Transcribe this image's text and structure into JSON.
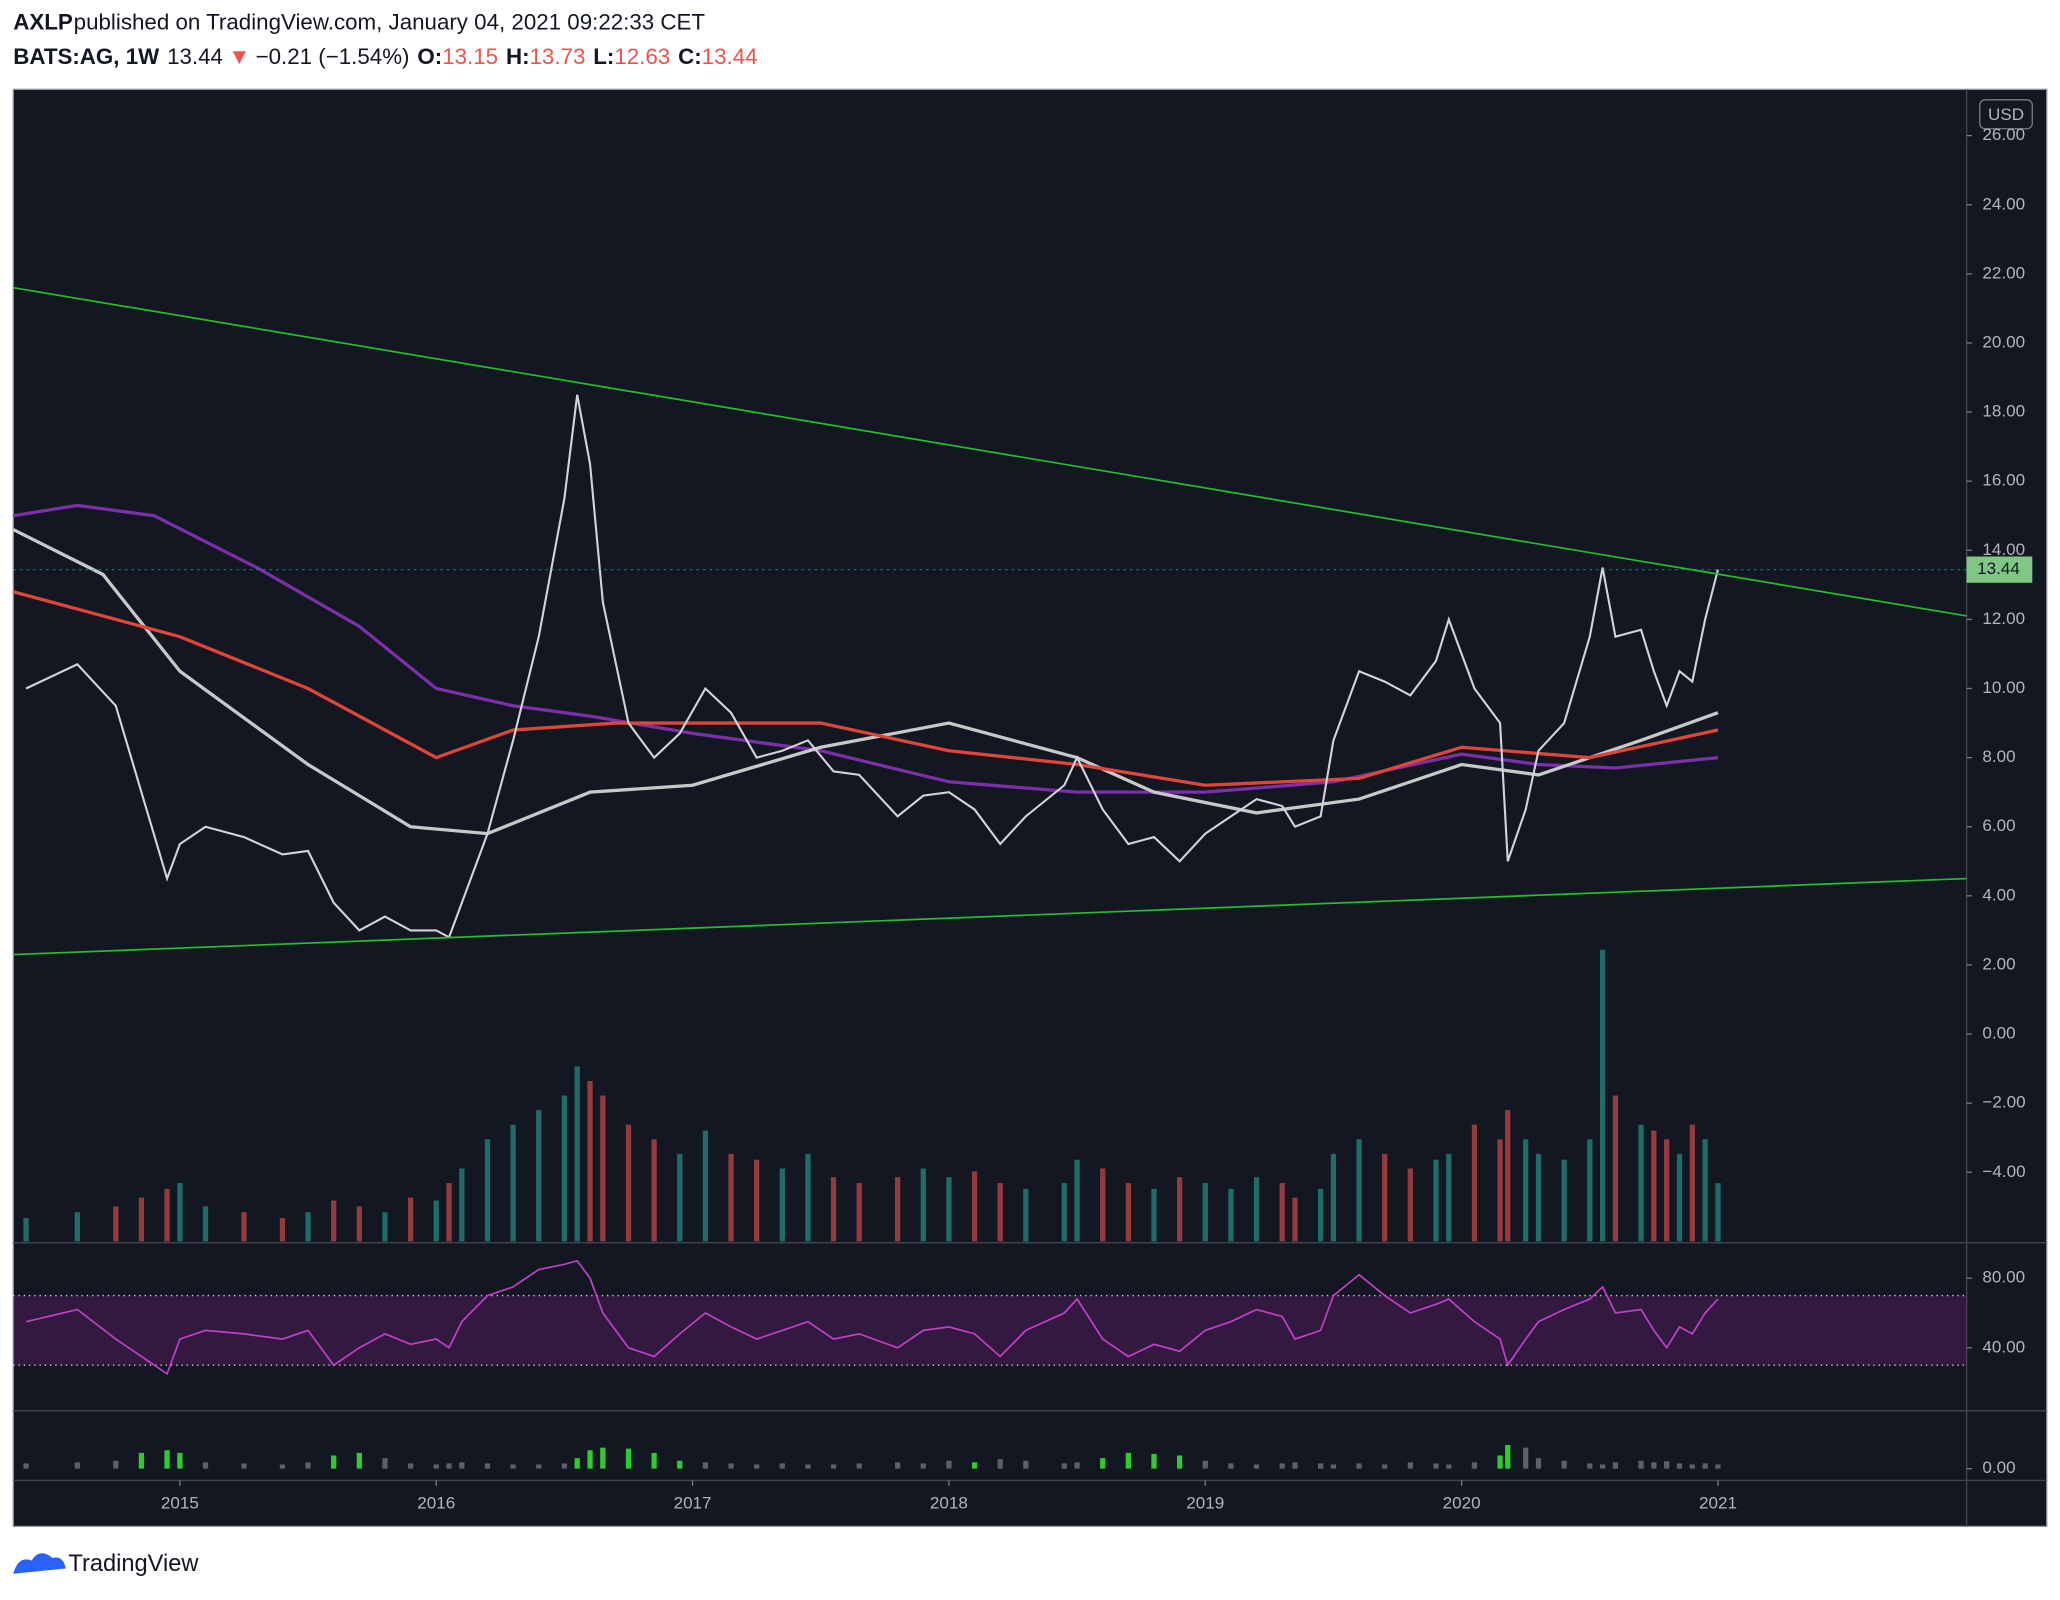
{
  "header": {
    "author": "AXLP",
    "published": "published on TradingView.com, January 04, 2021 09:22:33 CET",
    "symbol": "BATS:AG, 1W",
    "last": 13.44,
    "change_arrow": "▼",
    "change": "−0.21 (−1.54%)",
    "open_label": "O:",
    "open": 13.15,
    "high_label": "H:",
    "high": 13.73,
    "low_label": "L:",
    "low": 12.63,
    "close_label": "C:",
    "close": 13.44
  },
  "chart_data": {
    "type": "line",
    "currency": "USD",
    "last_price": 13.44,
    "xlim": [
      2014.35,
      2021.97
    ],
    "xticks": [
      2015,
      2016,
      2017,
      2018,
      2019,
      2020,
      2021
    ],
    "ylim": [
      -6.0,
      27.34
    ],
    "yticks": [
      {
        "value": -4,
        "label": "−4.00"
      },
      {
        "value": -2,
        "label": "−2.00"
      },
      {
        "value": 0,
        "label": "0.00"
      },
      {
        "value": 2,
        "label": "2.00"
      },
      {
        "value": 4,
        "label": "4.00"
      },
      {
        "value": 6,
        "label": "6.00"
      },
      {
        "value": 8,
        "label": "8.00"
      },
      {
        "value": 10,
        "label": "10.00"
      },
      {
        "value": 12,
        "label": "12.00"
      },
      {
        "value": 14,
        "label": "14.00"
      },
      {
        "value": 16,
        "label": "16.00"
      },
      {
        "value": 18,
        "label": "18.00"
      },
      {
        "value": 20,
        "label": "20.00"
      },
      {
        "value": 22,
        "label": "22.00"
      },
      {
        "value": 24,
        "label": "24.00"
      },
      {
        "value": 26,
        "label": "26.00"
      }
    ],
    "series": [
      {
        "color": "#d1d4dc",
        "x": [
          2014.4,
          2014.6,
          2014.75,
          2014.85,
          2014.95,
          2015.0,
          2015.1,
          2015.25,
          2015.4,
          2015.5,
          2015.6,
          2015.7,
          2015.8,
          2015.9,
          2016.0,
          2016.05,
          2016.1,
          2016.2,
          2016.3,
          2016.4,
          2016.5,
          2016.55,
          2016.6,
          2016.65,
          2016.75,
          2016.85,
          2016.95,
          2017.05,
          2017.15,
          2017.25,
          2017.35,
          2017.45,
          2017.55,
          2017.65,
          2017.8,
          2017.9,
          2018.0,
          2018.1,
          2018.2,
          2018.3,
          2018.45,
          2018.5,
          2018.6,
          2018.7,
          2018.8,
          2018.9,
          2019.0,
          2019.1,
          2019.2,
          2019.3,
          2019.35,
          2019.45,
          2019.5,
          2019.6,
          2019.7,
          2019.8,
          2019.9,
          2019.95,
          2020.05,
          2020.15,
          2020.18,
          2020.25,
          2020.3,
          2020.4,
          2020.5,
          2020.55,
          2020.6,
          2020.7,
          2020.75,
          2020.8,
          2020.85,
          2020.9,
          2020.95,
          2021.0
        ],
        "values": [
          10.0,
          10.7,
          9.5,
          7.0,
          4.5,
          5.5,
          6.0,
          5.7,
          5.2,
          5.3,
          3.8,
          3.0,
          3.4,
          3.0,
          3.0,
          2.8,
          3.8,
          5.8,
          8.5,
          11.5,
          15.5,
          18.5,
          16.5,
          12.5,
          9.0,
          8.0,
          8.7,
          10.0,
          9.3,
          8.0,
          8.2,
          8.5,
          7.6,
          7.5,
          6.3,
          6.9,
          7.0,
          6.5,
          5.5,
          6.3,
          7.2,
          8.0,
          6.5,
          5.5,
          5.7,
          5.0,
          5.8,
          6.3,
          6.8,
          6.6,
          6.0,
          6.3,
          8.5,
          10.5,
          10.2,
          9.8,
          10.8,
          12.0,
          10.0,
          9.0,
          5.0,
          6.5,
          8.2,
          9.0,
          11.5,
          13.5,
          11.5,
          11.7,
          10.5,
          9.5,
          10.5,
          10.2,
          12.0,
          13.44
        ]
      },
      {
        "color": "#7b2fa8",
        "x": [
          2014.35,
          2014.6,
          2014.9,
          2015.3,
          2015.7,
          2016.0,
          2016.3,
          2016.6,
          2017.0,
          2017.5,
          2018.0,
          2018.5,
          2019.0,
          2019.5,
          2020.0,
          2020.3,
          2020.6,
          2021.0
        ],
        "values": [
          15,
          15.3,
          15.0,
          13.5,
          11.8,
          10.0,
          9.5,
          9.2,
          8.7,
          8.2,
          7.3,
          7.0,
          7.0,
          7.3,
          8.1,
          7.8,
          7.7,
          8.0
        ]
      },
      {
        "color": "#c8c8c8",
        "x": [
          2014.35,
          2014.7,
          2015.0,
          2015.5,
          2015.9,
          2016.2,
          2016.6,
          2017.0,
          2017.5,
          2018.0,
          2018.5,
          2018.8,
          2019.2,
          2019.6,
          2020.0,
          2020.3,
          2020.7,
          2021.0
        ],
        "values": [
          14.6,
          13.3,
          10.5,
          7.8,
          6.0,
          5.8,
          7.0,
          7.2,
          8.3,
          9.0,
          8.0,
          7.0,
          6.4,
          6.8,
          7.8,
          7.5,
          8.5,
          9.3
        ]
      },
      {
        "color": "#e0453a",
        "x": [
          2014.35,
          2015.0,
          2015.5,
          2016.0,
          2016.3,
          2016.7,
          2017.5,
          2018.0,
          2018.5,
          2019.0,
          2019.6,
          2020.0,
          2020.5,
          2021.0
        ],
        "values": [
          12.8,
          11.5,
          10.0,
          8.0,
          8.8,
          9.0,
          9.0,
          8.2,
          7.8,
          7.2,
          7.4,
          8.3,
          8.0,
          8.8
        ]
      }
    ],
    "trendlines": [
      {
        "color": "#22c02a",
        "x": [
          2014.35,
          2021.97
        ],
        "values": [
          21.6,
          12.1
        ]
      },
      {
        "color": "#22c02a",
        "x": [
          2014.35,
          2021.97
        ],
        "values": [
          2.3,
          4.5
        ]
      }
    ],
    "volume": {
      "vlim": [
        0,
        100
      ],
      "up_color": "#26a69a",
      "down_color": "#ef5350",
      "values": [
        8,
        10,
        12,
        15,
        18,
        20,
        12,
        10,
        8,
        10,
        14,
        12,
        10,
        15,
        14,
        20,
        25,
        35,
        40,
        45,
        50,
        60,
        55,
        50,
        40,
        35,
        30,
        38,
        30,
        28,
        25,
        30,
        22,
        20,
        22,
        25,
        22,
        24,
        20,
        18,
        20,
        28,
        25,
        20,
        18,
        22,
        20,
        18,
        22,
        20,
        15,
        18,
        30,
        35,
        30,
        25,
        28,
        30,
        40,
        35,
        45,
        35,
        30,
        28,
        35,
        100,
        50,
        40,
        38,
        35,
        30,
        40,
        35,
        20
      ]
    },
    "rsi": {
      "color": "#c040c8",
      "ylim": [
        4.5,
        98.9
      ],
      "bands": [
        30,
        70
      ],
      "yticks": [
        {
          "value": 40,
          "label": "40.00"
        },
        {
          "value": 80,
          "label": "80.00"
        }
      ],
      "values": [
        55,
        62,
        45,
        35,
        25,
        45,
        50,
        48,
        45,
        50,
        30,
        40,
        48,
        42,
        45,
        40,
        55,
        70,
        75,
        85,
        88,
        90,
        80,
        60,
        40,
        35,
        48,
        60,
        52,
        45,
        50,
        55,
        45,
        48,
        40,
        50,
        52,
        48,
        35,
        50,
        60,
        68,
        45,
        35,
        42,
        38,
        50,
        55,
        62,
        58,
        45,
        50,
        70,
        82,
        70,
        60,
        65,
        68,
        55,
        45,
        30,
        45,
        55,
        62,
        68,
        75,
        60,
        62,
        50,
        40,
        52,
        48,
        60,
        68
      ]
    },
    "histogram": {
      "color": "#5d606b",
      "highlight_color": "#2ecc2e",
      "green_ranges": [
        [
          2014.84,
          2015.01
        ],
        [
          2015.59,
          2015.71
        ],
        [
          2016.54,
          2016.96
        ],
        [
          2018.09,
          2018.11
        ],
        [
          2018.59,
          2018.91
        ],
        [
          2020.14,
          2020.19
        ]
      ],
      "ylim": [
        0,
        100
      ],
      "yticks": [
        {
          "value": 0,
          "label": "0.00"
        }
      ],
      "values": [
        10,
        12,
        15,
        30,
        35,
        30,
        12,
        10,
        8,
        12,
        25,
        30,
        20,
        10,
        8,
        10,
        12,
        10,
        8,
        8,
        10,
        20,
        35,
        40,
        38,
        30,
        15,
        12,
        10,
        8,
        10,
        8,
        8,
        10,
        12,
        10,
        15,
        12,
        18,
        15,
        10,
        12,
        20,
        30,
        28,
        25,
        15,
        10,
        8,
        10,
        12,
        10,
        8,
        10,
        8,
        12,
        10,
        8,
        12,
        25,
        45,
        40,
        20,
        15,
        10,
        8,
        12,
        15,
        12,
        14,
        10,
        8,
        10,
        8
      ]
    }
  },
  "footer": {
    "brand": "TradingView"
  }
}
